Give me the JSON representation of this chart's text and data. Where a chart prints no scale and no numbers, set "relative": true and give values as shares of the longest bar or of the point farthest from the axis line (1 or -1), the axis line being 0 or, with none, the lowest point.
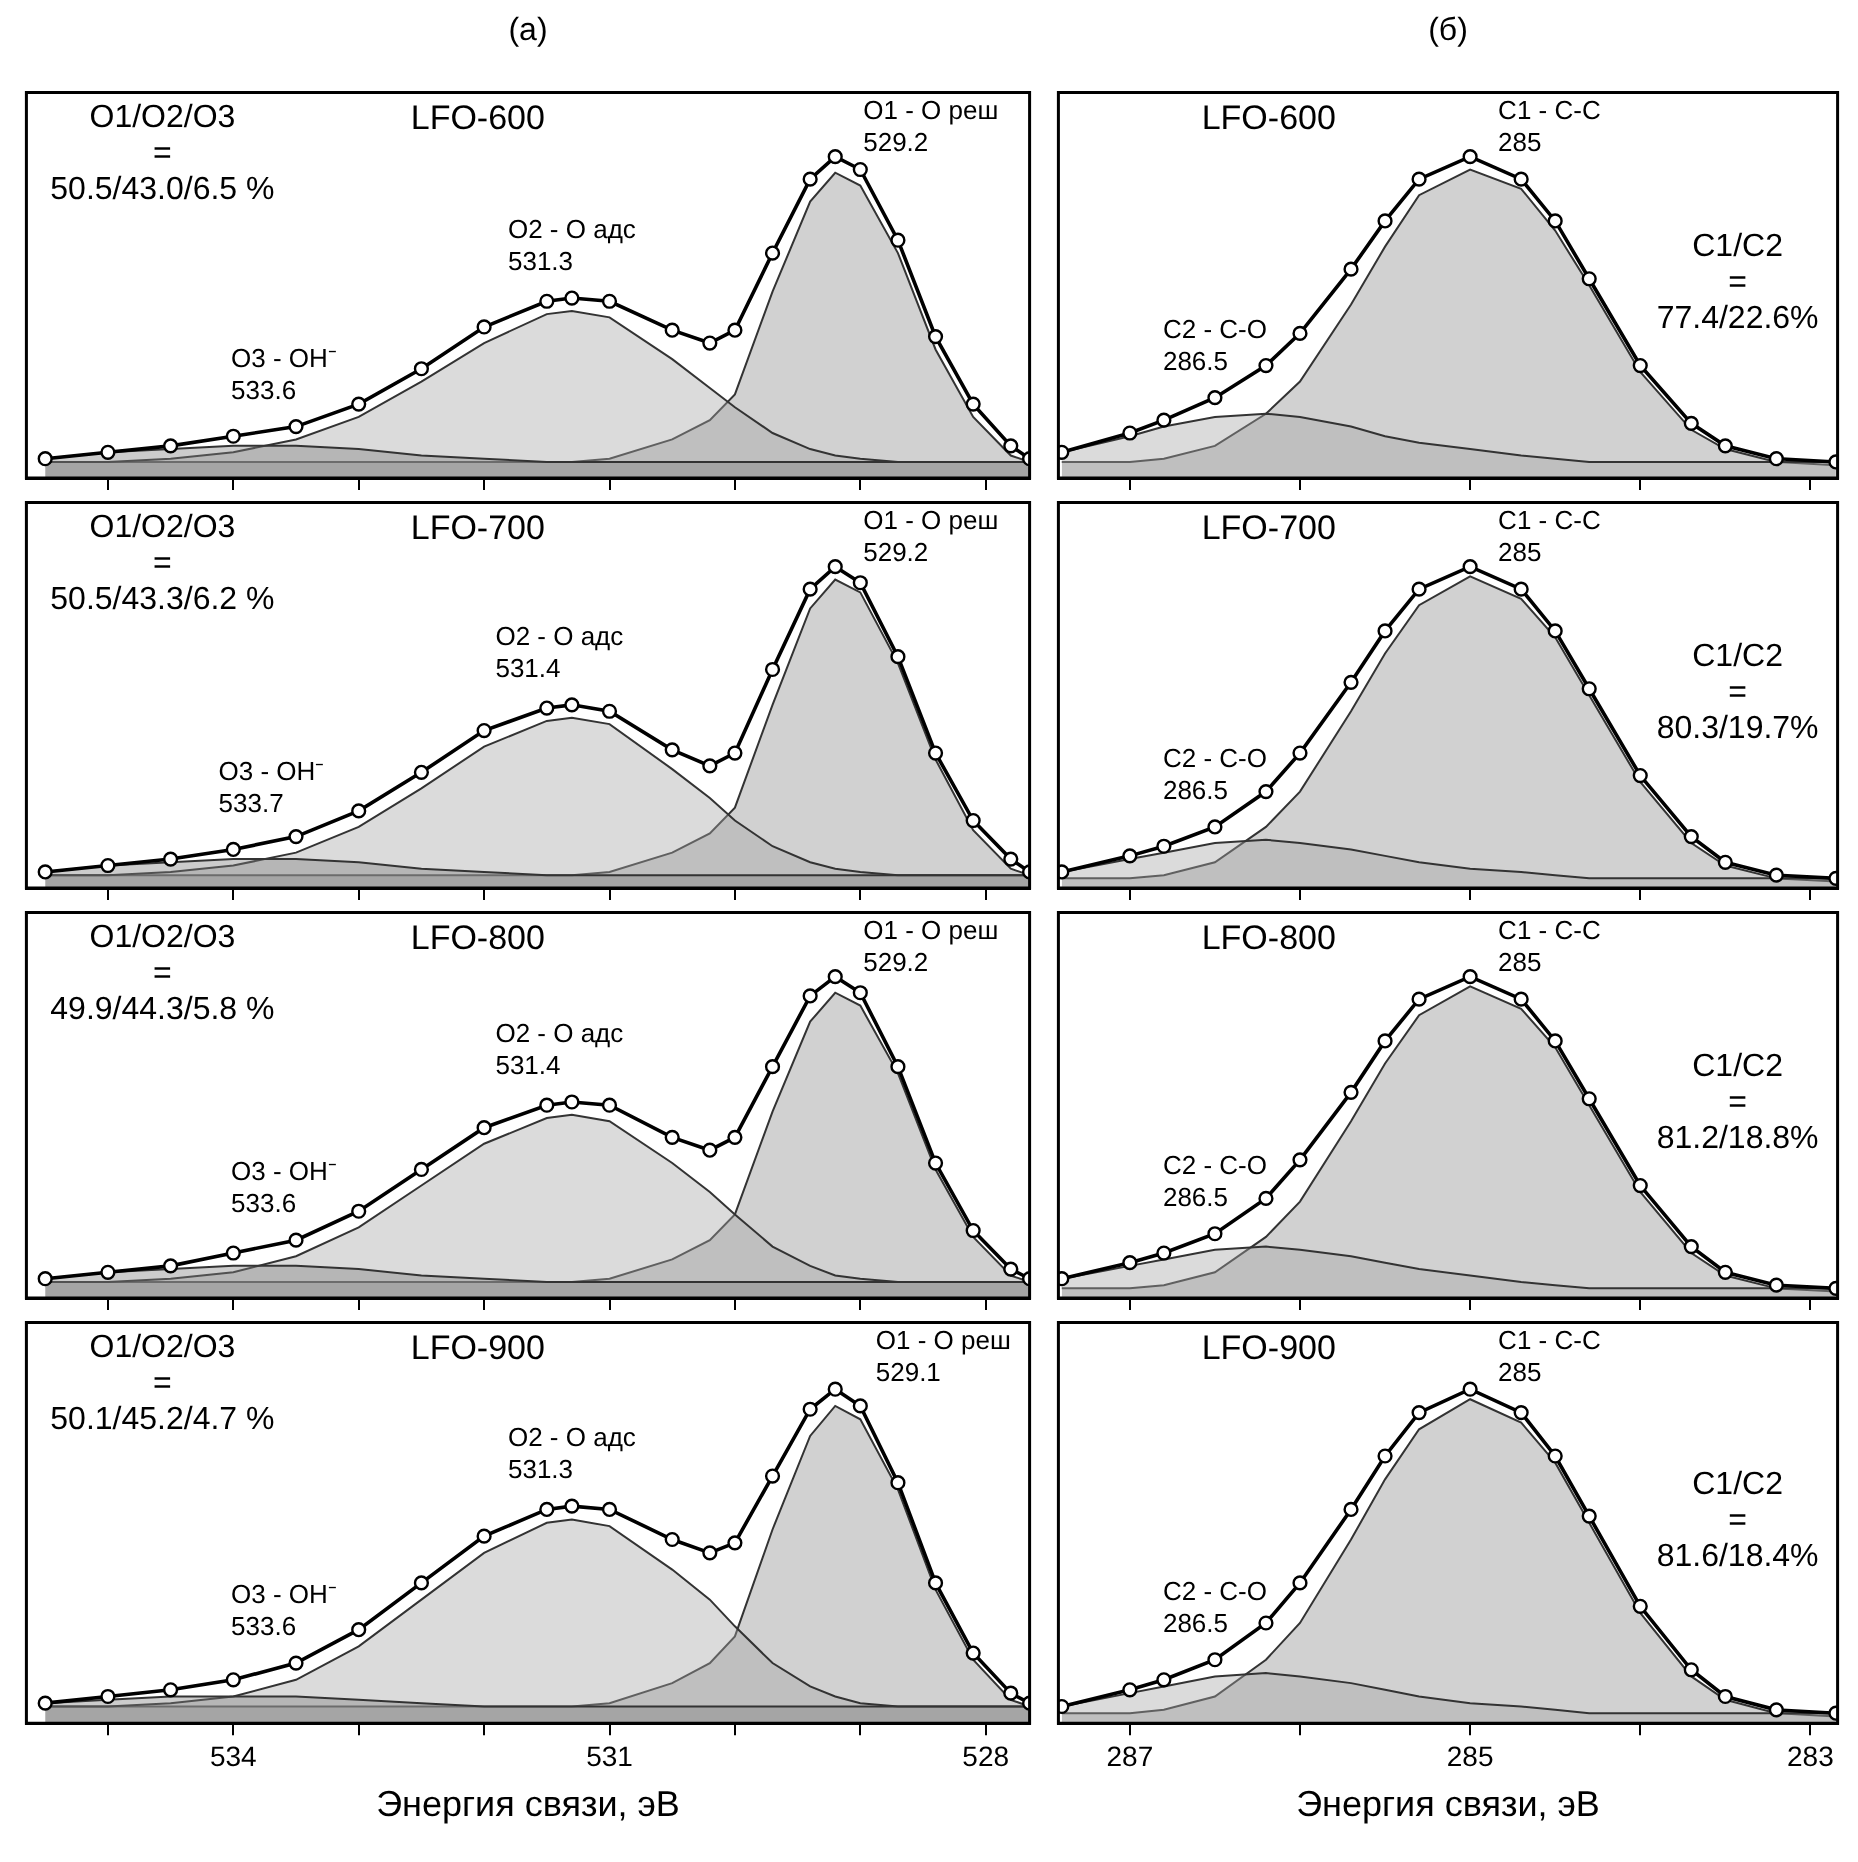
{
  "chart_data": [
    {
      "type": "line",
      "subtitle": "(a)",
      "title": "LFO-600",
      "relative": true,
      "tick_labels": false,
      "xlim": [
        535.65,
        527.65
      ],
      "xticks": [
        {
          "value": 535,
          "label": null
        },
        {
          "value": 534,
          "label": null
        },
        {
          "value": 533,
          "label": null
        },
        {
          "value": 532,
          "label": null
        },
        {
          "value": 531,
          "label": null
        },
        {
          "value": 530,
          "label": null
        },
        {
          "value": 529,
          "label": null
        },
        {
          "value": 528,
          "label": null
        }
      ],
      "x": [
        535.5,
        535,
        534.5,
        534,
        533.5,
        533,
        532.5,
        532,
        531.5,
        531.3,
        531,
        530.5,
        530.2,
        530,
        529.7,
        529.4,
        529.2,
        529,
        528.7,
        528.4,
        528.1,
        527.8,
        527.65
      ],
      "series": [
        {
          "type": "area",
          "color": "#7f7f7f",
          "values": [
            0.06,
            0.08,
            0.09,
            0.1,
            0.1,
            0.09,
            0.07,
            0.06,
            0.05,
            0.05,
            0.05,
            0.05,
            0.05,
            0.05,
            0.05,
            0.05,
            0.05,
            0.05,
            0.05,
            0.05,
            0.05,
            0.05,
            0.05
          ]
        },
        {
          "type": "area",
          "color": "#a6a6a6",
          "values": [
            0.05,
            0.05,
            0.06,
            0.08,
            0.12,
            0.19,
            0.3,
            0.42,
            0.51,
            0.52,
            0.5,
            0.37,
            0.28,
            0.22,
            0.14,
            0.09,
            0.07,
            0.06,
            0.05,
            0.05,
            0.05,
            0.05,
            0.05
          ]
        },
        {
          "type": "area",
          "color": "#8c8c8c",
          "values": [
            0.05,
            0.05,
            0.05,
            0.05,
            0.05,
            0.05,
            0.05,
            0.05,
            0.05,
            0.05,
            0.06,
            0.12,
            0.18,
            0.26,
            0.58,
            0.86,
            0.95,
            0.91,
            0.7,
            0.4,
            0.19,
            0.07,
            0.05
          ]
        },
        {
          "marker": "circle",
          "color": "#000000",
          "values": [
            0.06,
            0.08,
            0.1,
            0.13,
            0.16,
            0.23,
            0.34,
            0.47,
            0.55,
            0.56,
            0.55,
            0.46,
            0.42,
            0.46,
            0.7,
            0.93,
            1.0,
            0.96,
            0.74,
            0.44,
            0.23,
            0.1,
            0.06
          ]
        }
      ],
      "annotations": [
        "O1/O2/O3\n=\n50.5/43.0/6.5 %",
        {
          "text": "O1 - O реш\n529.2",
          "x": 529.2,
          "y": 1.0
        },
        {
          "text": "O2 - O адс\n531.3",
          "x": 531.3,
          "y": 0.56
        },
        {
          "text": "O3 - OH⁻\n533.6",
          "x": 533.6,
          "y": 0.16
        }
      ]
    },
    {
      "type": "line",
      "title": "LFO-700",
      "relative": true,
      "tick_labels": false,
      "xlim": [
        535.65,
        527.65
      ],
      "xticks": [
        {
          "value": 535,
          "label": null
        },
        {
          "value": 534,
          "label": null
        },
        {
          "value": 533,
          "label": null
        },
        {
          "value": 532,
          "label": null
        },
        {
          "value": 531,
          "label": null
        },
        {
          "value": 530,
          "label": null
        },
        {
          "value": 529,
          "label": null
        },
        {
          "value": 528,
          "label": null
        }
      ],
      "x": [
        535.5,
        535,
        534.5,
        534,
        533.5,
        533,
        532.5,
        532,
        531.5,
        531.3,
        531,
        530.5,
        530.2,
        530,
        529.7,
        529.4,
        529.2,
        529,
        528.7,
        528.4,
        528.1,
        527.8,
        527.65
      ],
      "series": [
        {
          "type": "area",
          "color": "#7f7f7f",
          "values": [
            0.05,
            0.07,
            0.08,
            0.09,
            0.09,
            0.08,
            0.06,
            0.05,
            0.04,
            0.04,
            0.04,
            0.04,
            0.04,
            0.04,
            0.04,
            0.04,
            0.04,
            0.04,
            0.04,
            0.04,
            0.04,
            0.04,
            0.04
          ]
        },
        {
          "type": "area",
          "color": "#a6a6a6",
          "values": [
            0.04,
            0.04,
            0.05,
            0.07,
            0.11,
            0.19,
            0.31,
            0.44,
            0.52,
            0.53,
            0.51,
            0.37,
            0.28,
            0.21,
            0.13,
            0.08,
            0.06,
            0.05,
            0.04,
            0.04,
            0.04,
            0.04,
            0.04
          ]
        },
        {
          "type": "area",
          "color": "#8c8c8c",
          "values": [
            0.04,
            0.04,
            0.04,
            0.04,
            0.04,
            0.04,
            0.04,
            0.04,
            0.04,
            0.04,
            0.05,
            0.11,
            0.17,
            0.25,
            0.57,
            0.87,
            0.96,
            0.92,
            0.7,
            0.4,
            0.18,
            0.06,
            0.04
          ]
        },
        {
          "marker": "circle",
          "color": "#000000",
          "values": [
            0.05,
            0.07,
            0.09,
            0.12,
            0.16,
            0.24,
            0.36,
            0.49,
            0.56,
            0.57,
            0.55,
            0.43,
            0.38,
            0.42,
            0.68,
            0.93,
            1.0,
            0.95,
            0.72,
            0.42,
            0.21,
            0.09,
            0.05
          ]
        }
      ],
      "annotations": [
        "O1/O2/O3\n=\n50.5/43.3/6.2 %",
        {
          "text": "O1 - O реш\n529.2",
          "x": 529.2,
          "y": 1.0
        },
        {
          "text": "O2 - O адс\n531.4",
          "x": 531.4,
          "y": 0.57
        },
        {
          "text": "O3 - OH⁻\n533.7",
          "x": 533.7,
          "y": 0.15
        }
      ]
    },
    {
      "type": "line",
      "title": "LFO-800",
      "relative": true,
      "tick_labels": false,
      "xlim": [
        535.65,
        527.65
      ],
      "xticks": [
        {
          "value": 535,
          "label": null
        },
        {
          "value": 534,
          "label": null
        },
        {
          "value": 533,
          "label": null
        },
        {
          "value": 532,
          "label": null
        },
        {
          "value": 531,
          "label": null
        },
        {
          "value": 530,
          "label": null
        },
        {
          "value": 529,
          "label": null
        },
        {
          "value": 528,
          "label": null
        }
      ],
      "x": [
        535.5,
        535,
        534.5,
        534,
        533.5,
        533,
        532.5,
        532,
        531.5,
        531.3,
        531,
        530.5,
        530.2,
        530,
        529.7,
        529.4,
        529.2,
        529,
        528.7,
        528.4,
        528.1,
        527.8,
        527.65
      ],
      "series": [
        {
          "type": "area",
          "color": "#7f7f7f",
          "values": [
            0.06,
            0.08,
            0.09,
            0.1,
            0.1,
            0.09,
            0.07,
            0.06,
            0.05,
            0.05,
            0.05,
            0.05,
            0.05,
            0.05,
            0.05,
            0.05,
            0.05,
            0.05,
            0.05,
            0.05,
            0.05,
            0.05,
            0.05
          ]
        },
        {
          "type": "area",
          "color": "#a6a6a6",
          "values": [
            0.05,
            0.05,
            0.06,
            0.08,
            0.13,
            0.22,
            0.35,
            0.48,
            0.56,
            0.57,
            0.55,
            0.42,
            0.33,
            0.26,
            0.16,
            0.1,
            0.07,
            0.06,
            0.05,
            0.05,
            0.05,
            0.05,
            0.05
          ]
        },
        {
          "type": "area",
          "color": "#8c8c8c",
          "values": [
            0.05,
            0.05,
            0.05,
            0.05,
            0.05,
            0.05,
            0.05,
            0.05,
            0.05,
            0.05,
            0.06,
            0.12,
            0.18,
            0.26,
            0.58,
            0.86,
            0.95,
            0.91,
            0.7,
            0.4,
            0.19,
            0.07,
            0.05
          ]
        },
        {
          "marker": "circle",
          "color": "#000000",
          "values": [
            0.06,
            0.08,
            0.1,
            0.14,
            0.18,
            0.27,
            0.4,
            0.53,
            0.6,
            0.61,
            0.6,
            0.5,
            0.46,
            0.5,
            0.72,
            0.94,
            1.0,
            0.95,
            0.72,
            0.42,
            0.21,
            0.09,
            0.06
          ]
        }
      ],
      "annotations": [
        "O1/O2/O3\n=\n49.9/44.3/5.8 %",
        {
          "text": "O1 - O реш\n529.2",
          "x": 529.2,
          "y": 1.0
        },
        {
          "text": "O2 - O адс\n531.4",
          "x": 531.4,
          "y": 0.61
        },
        {
          "text": "O3 - OH⁻\n533.6",
          "x": 533.6,
          "y": 0.18
        }
      ]
    },
    {
      "type": "line",
      "title": "LFO-900",
      "xlabel": "Энергия связи, эВ",
      "relative": true,
      "tick_labels": "x",
      "xlim": [
        535.65,
        527.65
      ],
      "xticks": [
        {
          "value": 535,
          "label": null
        },
        534,
        {
          "value": 533,
          "label": null
        },
        {
          "value": 532,
          "label": null
        },
        531,
        {
          "value": 530,
          "label": null
        },
        {
          "value": 529,
          "label": null
        },
        528
      ],
      "x": [
        535.5,
        535,
        534.5,
        534,
        533.5,
        533,
        532.5,
        532,
        531.5,
        531.3,
        531,
        530.5,
        530.2,
        530,
        529.7,
        529.4,
        529.2,
        529,
        528.7,
        528.4,
        528.1,
        527.8,
        527.65
      ],
      "series": [
        {
          "type": "area",
          "color": "#7f7f7f",
          "values": [
            0.06,
            0.07,
            0.08,
            0.08,
            0.08,
            0.07,
            0.06,
            0.05,
            0.05,
            0.05,
            0.05,
            0.05,
            0.05,
            0.05,
            0.05,
            0.05,
            0.05,
            0.05,
            0.05,
            0.05,
            0.05,
            0.05,
            0.05
          ]
        },
        {
          "type": "area",
          "color": "#a6a6a6",
          "values": [
            0.05,
            0.05,
            0.06,
            0.08,
            0.13,
            0.23,
            0.37,
            0.51,
            0.6,
            0.61,
            0.59,
            0.46,
            0.37,
            0.29,
            0.18,
            0.11,
            0.08,
            0.06,
            0.05,
            0.05,
            0.05,
            0.05,
            0.05
          ]
        },
        {
          "type": "area",
          "color": "#8c8c8c",
          "values": [
            0.05,
            0.05,
            0.05,
            0.05,
            0.05,
            0.05,
            0.05,
            0.05,
            0.05,
            0.05,
            0.06,
            0.12,
            0.18,
            0.26,
            0.58,
            0.86,
            0.95,
            0.91,
            0.7,
            0.4,
            0.19,
            0.07,
            0.05
          ]
        },
        {
          "marker": "circle",
          "color": "#000000",
          "values": [
            0.06,
            0.08,
            0.1,
            0.13,
            0.18,
            0.28,
            0.42,
            0.56,
            0.64,
            0.65,
            0.64,
            0.55,
            0.51,
            0.54,
            0.74,
            0.94,
            1.0,
            0.95,
            0.72,
            0.42,
            0.21,
            0.09,
            0.06
          ]
        }
      ],
      "annotations": [
        "O1/O2/O3\n=\n50.1/45.2/4.7 %",
        {
          "text": "O1 - O реш\n529.1",
          "x": 529.1,
          "y": 1.0
        },
        {
          "text": "O2 - O адс\n531.3",
          "x": 531.3,
          "y": 0.65
        },
        {
          "text": "O3 - OH⁻\n533.6",
          "x": 533.6,
          "y": 0.18
        }
      ]
    },
    {
      "type": "line",
      "subtitle": "(б)",
      "title": "LFO-600",
      "relative": true,
      "tick_labels": false,
      "xlim": [
        287.42,
        282.84
      ],
      "xticks": [
        {
          "value": 287,
          "label": null
        },
        {
          "value": 286,
          "label": null
        },
        {
          "value": 285,
          "label": null
        },
        {
          "value": 284,
          "label": null
        },
        {
          "value": 283,
          "label": null
        }
      ],
      "x": [
        287.4,
        287,
        286.8,
        286.5,
        286.2,
        286,
        285.7,
        285.5,
        285.3,
        285,
        284.7,
        284.5,
        284.3,
        284,
        283.7,
        283.5,
        283.2,
        282.85
      ],
      "series": [
        {
          "type": "area",
          "color": "#a6a6a6",
          "values": [
            0.08,
            0.13,
            0.16,
            0.19,
            0.2,
            0.19,
            0.16,
            0.13,
            0.11,
            0.09,
            0.07,
            0.06,
            0.05,
            0.05,
            0.05,
            0.05,
            0.05,
            0.05
          ]
        },
        {
          "type": "area",
          "color": "#8c8c8c",
          "values": [
            0.05,
            0.05,
            0.06,
            0.1,
            0.2,
            0.3,
            0.54,
            0.72,
            0.88,
            0.96,
            0.9,
            0.77,
            0.6,
            0.33,
            0.15,
            0.09,
            0.05,
            0.04
          ]
        },
        {
          "marker": "circle",
          "color": "#000000",
          "values": [
            0.08,
            0.14,
            0.18,
            0.25,
            0.35,
            0.45,
            0.65,
            0.8,
            0.93,
            1.0,
            0.93,
            0.8,
            0.62,
            0.35,
            0.17,
            0.1,
            0.06,
            0.05
          ]
        }
      ],
      "annotations": [
        "C1/C2\n=\n77.4/22.6%",
        {
          "text": "C1 - C-C\n285",
          "x": 285,
          "y": 1.0
        },
        {
          "text": "C2 - C-O\n286.5",
          "x": 286.5,
          "y": 0.25
        }
      ]
    },
    {
      "type": "line",
      "title": "LFO-700",
      "relative": true,
      "tick_labels": false,
      "xlim": [
        287.42,
        282.84
      ],
      "xticks": [
        {
          "value": 287,
          "label": null
        },
        {
          "value": 286,
          "label": null
        },
        {
          "value": 285,
          "label": null
        },
        {
          "value": 284,
          "label": null
        },
        {
          "value": 283,
          "label": null
        }
      ],
      "x": [
        287.4,
        287,
        286.8,
        286.5,
        286.2,
        286,
        285.7,
        285.5,
        285.3,
        285,
        284.7,
        284.5,
        284.3,
        284,
        283.7,
        283.5,
        283.2,
        282.85
      ],
      "series": [
        {
          "type": "area",
          "color": "#a6a6a6",
          "values": [
            0.05,
            0.09,
            0.11,
            0.14,
            0.15,
            0.14,
            0.12,
            0.1,
            0.08,
            0.06,
            0.05,
            0.04,
            0.03,
            0.03,
            0.03,
            0.03,
            0.03,
            0.03
          ]
        },
        {
          "type": "area",
          "color": "#8c8c8c",
          "values": [
            0.03,
            0.03,
            0.04,
            0.08,
            0.19,
            0.3,
            0.55,
            0.73,
            0.88,
            0.97,
            0.9,
            0.78,
            0.6,
            0.33,
            0.14,
            0.07,
            0.03,
            0.02
          ]
        },
        {
          "marker": "circle",
          "color": "#000000",
          "values": [
            0.05,
            0.1,
            0.13,
            0.19,
            0.3,
            0.42,
            0.64,
            0.8,
            0.93,
            1.0,
            0.93,
            0.8,
            0.62,
            0.35,
            0.16,
            0.08,
            0.04,
            0.03
          ]
        }
      ],
      "annotations": [
        "C1/C2\n=\n80.3/19.7%",
        {
          "text": "C1 - C-C\n285",
          "x": 285,
          "y": 1.0
        },
        {
          "text": "C2 - C-O\n286.5",
          "x": 286.5,
          "y": 0.19
        }
      ]
    },
    {
      "type": "line",
      "title": "LFO-800",
      "relative": true,
      "tick_labels": false,
      "xlim": [
        287.42,
        282.84
      ],
      "xticks": [
        {
          "value": 287,
          "label": null
        },
        {
          "value": 286,
          "label": null
        },
        {
          "value": 285,
          "label": null
        },
        {
          "value": 284,
          "label": null
        },
        {
          "value": 283,
          "label": null
        }
      ],
      "x": [
        287.4,
        287,
        286.8,
        286.5,
        286.2,
        286,
        285.7,
        285.5,
        285.3,
        285,
        284.7,
        284.5,
        284.3,
        284,
        283.7,
        283.5,
        283.2,
        282.85
      ],
      "series": [
        {
          "type": "area",
          "color": "#a6a6a6",
          "values": [
            0.06,
            0.1,
            0.12,
            0.15,
            0.16,
            0.15,
            0.13,
            0.11,
            0.09,
            0.07,
            0.05,
            0.04,
            0.03,
            0.03,
            0.03,
            0.03,
            0.03,
            0.03
          ]
        },
        {
          "type": "area",
          "color": "#8c8c8c",
          "values": [
            0.03,
            0.03,
            0.04,
            0.08,
            0.19,
            0.3,
            0.55,
            0.73,
            0.88,
            0.97,
            0.9,
            0.78,
            0.6,
            0.33,
            0.14,
            0.07,
            0.03,
            0.02
          ]
        },
        {
          "marker": "circle",
          "color": "#000000",
          "values": [
            0.06,
            0.11,
            0.14,
            0.2,
            0.31,
            0.43,
            0.64,
            0.8,
            0.93,
            1.0,
            0.93,
            0.8,
            0.62,
            0.35,
            0.16,
            0.08,
            0.04,
            0.03
          ]
        }
      ],
      "annotations": [
        "C1/C2\n=\n81.2/18.8%",
        {
          "text": "C1 - C-C\n285",
          "x": 285,
          "y": 1.0
        },
        {
          "text": "C2 - C-O\n286.5",
          "x": 286.5,
          "y": 0.2
        }
      ]
    },
    {
      "type": "line",
      "title": "LFO-900",
      "xlabel": "Энергия связи, эВ",
      "relative": true,
      "tick_labels": "x",
      "xlim": [
        287.42,
        282.84
      ],
      "xticks": [
        287,
        {
          "value": 286,
          "label": null
        },
        285,
        {
          "value": 284,
          "label": null
        },
        283
      ],
      "x": [
        287.4,
        287,
        286.8,
        286.5,
        286.2,
        286,
        285.7,
        285.5,
        285.3,
        285,
        284.7,
        284.5,
        284.3,
        284,
        283.7,
        283.5,
        283.2,
        282.85
      ],
      "series": [
        {
          "type": "area",
          "color": "#a6a6a6",
          "values": [
            0.05,
            0.09,
            0.11,
            0.14,
            0.15,
            0.14,
            0.12,
            0.1,
            0.08,
            0.06,
            0.05,
            0.04,
            0.03,
            0.03,
            0.03,
            0.03,
            0.03,
            0.03
          ]
        },
        {
          "type": "area",
          "color": "#8c8c8c",
          "values": [
            0.03,
            0.03,
            0.04,
            0.08,
            0.19,
            0.3,
            0.55,
            0.73,
            0.88,
            0.97,
            0.9,
            0.78,
            0.6,
            0.33,
            0.14,
            0.07,
            0.03,
            0.02
          ]
        },
        {
          "marker": "circle",
          "color": "#000000",
          "values": [
            0.05,
            0.1,
            0.13,
            0.19,
            0.3,
            0.42,
            0.64,
            0.8,
            0.93,
            1.0,
            0.93,
            0.8,
            0.62,
            0.35,
            0.16,
            0.08,
            0.04,
            0.03
          ]
        }
      ],
      "annotations": [
        "C1/C2\n=\n81.6/18.4%",
        {
          "text": "C1 - C-C\n285",
          "x": 285,
          "y": 1.0
        },
        {
          "text": "C2 - C-O\n286.5",
          "x": 286.5,
          "y": 0.19
        }
      ]
    }
  ]
}
